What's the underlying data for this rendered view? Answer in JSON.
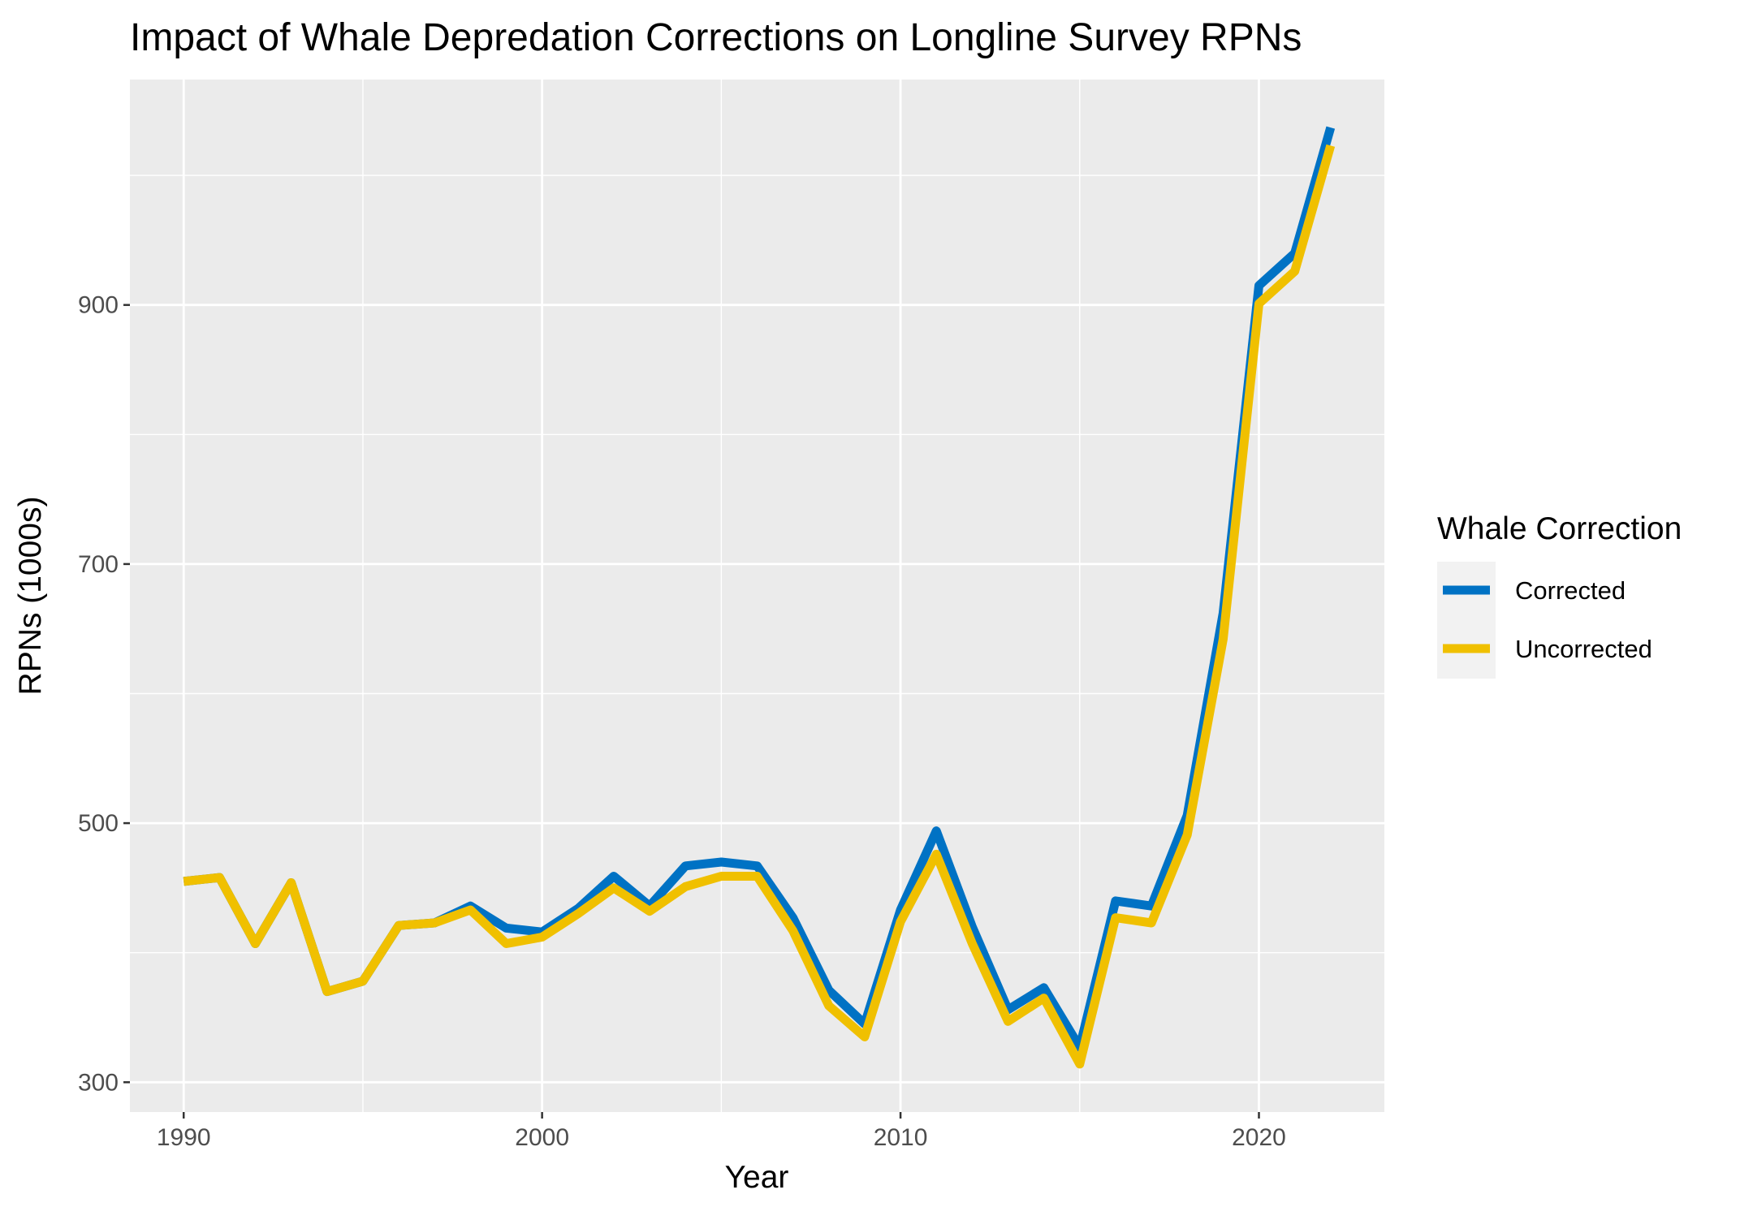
{
  "chart_data": {
    "type": "line",
    "title": "Impact of Whale Depredation Corrections on Longline Survey RPNs",
    "xlabel": "Year",
    "ylabel": "RPNs (1000s)",
    "xlim": [
      1988.5,
      2023.5
    ],
    "ylim": [
      277,
      1074
    ],
    "x_ticks": [
      1990,
      2000,
      2010,
      2020
    ],
    "x_minor_ticks": [
      1995,
      2005,
      2015
    ],
    "y_ticks": [
      300,
      500,
      700,
      900
    ],
    "y_minor_ticks": [
      400,
      600,
      800,
      1000
    ],
    "grid": true,
    "legend": {
      "title": "Whale Correction",
      "position": "right"
    },
    "x": [
      1990,
      1991,
      1992,
      1993,
      1994,
      1995,
      1996,
      1997,
      1998,
      1999,
      2000,
      2001,
      2002,
      2003,
      2004,
      2005,
      2006,
      2007,
      2008,
      2009,
      2010,
      2011,
      2012,
      2013,
      2014,
      2015,
      2016,
      2017,
      2018,
      2019,
      2020,
      2021,
      2022
    ],
    "series": [
      {
        "name": "Corrected",
        "color": "#0072c4",
        "values": [
          455,
          458,
          407,
          454,
          370,
          378,
          421,
          423,
          436,
          419,
          416,
          434,
          459,
          436,
          467,
          470,
          467,
          427,
          371,
          345,
          433,
          494,
          420,
          356,
          373,
          327,
          440,
          436,
          506,
          662,
          915,
          940,
          1037
        ]
      },
      {
        "name": "Uncorrected",
        "color": "#f0c000",
        "values": [
          455,
          458,
          407,
          454,
          370,
          378,
          421,
          423,
          433,
          407,
          412,
          430,
          450,
          432,
          451,
          459,
          459,
          417,
          359,
          335,
          424,
          476,
          407,
          347,
          365,
          314,
          427,
          423,
          491,
          642,
          901,
          926,
          1023
        ]
      }
    ]
  }
}
